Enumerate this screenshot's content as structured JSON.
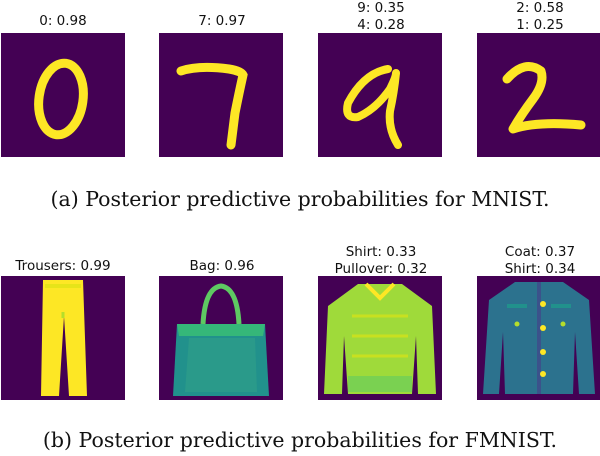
{
  "mnist": {
    "panels": [
      {
        "lines": [
          "0: 0.98"
        ]
      },
      {
        "lines": [
          "7: 0.97"
        ]
      },
      {
        "lines": [
          "9: 0.35",
          "4: 0.28"
        ]
      },
      {
        "lines": [
          "2: 0.58",
          "1: 0.25"
        ]
      }
    ],
    "caption": "(a) Posterior predictive probabilities for MNIST."
  },
  "fmnist": {
    "panels": [
      {
        "lines": [
          "Trousers: 0.99"
        ]
      },
      {
        "lines": [
          "Bag: 0.96"
        ]
      },
      {
        "lines": [
          "Shirt: 0.33",
          "Pullover: 0.32"
        ]
      },
      {
        "lines": [
          "Coat: 0.37",
          "Shirt: 0.34"
        ]
      }
    ],
    "caption": "(b) Posterior predictive probabilities for FMNIST."
  },
  "colors": {
    "background_purple": "#440154",
    "stroke_yellow": "#fde725",
    "mid_green": "#5ec962",
    "teal": "#21918c"
  }
}
